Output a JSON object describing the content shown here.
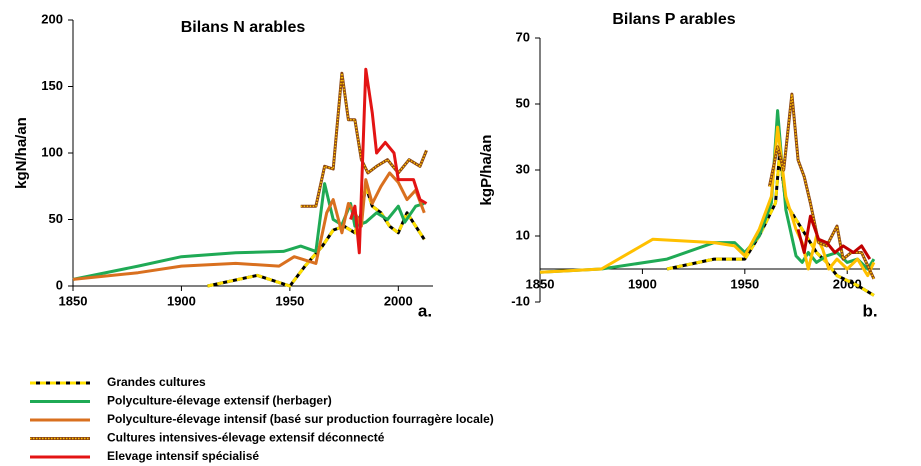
{
  "chart_data": [
    {
      "type": "line",
      "title": "Bilans N arables",
      "ylabel": "kgN/ha/an",
      "panel_label": "a.",
      "xlim": [
        1850,
        2016
      ],
      "xticks": [
        1850,
        1900,
        1950,
        2000
      ],
      "ylim": [
        0,
        200
      ],
      "yticks": [
        0,
        50,
        100,
        150,
        200
      ],
      "series": [
        {
          "name": "Grandes cultures",
          "color": "#ffe000",
          "style": "dashed",
          "x": [
            1912,
            1935,
            1950,
            1957,
            1965,
            1970,
            1975,
            1980,
            1983,
            1985,
            1988,
            1992,
            1996,
            2000,
            2004,
            2008,
            2012
          ],
          "values": [
            0,
            8,
            0,
            15,
            30,
            42,
            45,
            40,
            55,
            75,
            60,
            55,
            45,
            40,
            55,
            45,
            35
          ]
        },
        {
          "name": "Polyculture-élevage extensif (herbager)",
          "color": "#1faa55",
          "style": "solid",
          "x": [
            1850,
            1880,
            1900,
            1925,
            1947,
            1955,
            1962,
            1966,
            1970,
            1974,
            1978,
            1980,
            1985,
            1990,
            1995,
            2000,
            2003,
            2008,
            2012
          ],
          "values": [
            5,
            15,
            22,
            25,
            26,
            30,
            26,
            77,
            50,
            46,
            62,
            45,
            48,
            55,
            50,
            60,
            48,
            60,
            62
          ]
        },
        {
          "name": "Polyculture-élevage intensif (basé sur production fourragère locale)",
          "color": "#d9701f",
          "style": "solid",
          "x": [
            1850,
            1880,
            1900,
            1925,
            1945,
            1952,
            1962,
            1967,
            1970,
            1974,
            1977,
            1980,
            1983,
            1985,
            1988,
            1992,
            1996,
            2000,
            2004,
            2008,
            2012
          ],
          "values": [
            5,
            10,
            15,
            17,
            15,
            22,
            17,
            55,
            65,
            40,
            62,
            55,
            45,
            80,
            62,
            75,
            85,
            78,
            65,
            72,
            55
          ]
        },
        {
          "name": "Cultures intensives-élevage extensif déconnecté",
          "color": "#b8860b",
          "style": "dotted",
          "x": [
            1955,
            1962,
            1966,
            1970,
            1974,
            1977,
            1980,
            1983,
            1986,
            1990,
            1995,
            2000,
            2005,
            2010,
            2013
          ],
          "values": [
            60,
            60,
            90,
            88,
            160,
            125,
            125,
            95,
            85,
            90,
            95,
            85,
            95,
            90,
            102
          ]
        },
        {
          "name": "Elevage intensif spécialisé",
          "color": "#e31414",
          "style": "solid",
          "x": [
            1978,
            1980,
            1982,
            1985,
            1988,
            1990,
            1994,
            1998,
            2000,
            2004,
            2007,
            2010,
            2013
          ],
          "values": [
            50,
            60,
            25,
            163,
            130,
            100,
            108,
            100,
            80,
            80,
            80,
            65,
            62
          ]
        }
      ]
    },
    {
      "type": "line",
      "title": "Bilans P arables",
      "ylabel": "kgP/ha/an",
      "panel_label": "b.",
      "xlim": [
        1850,
        2016
      ],
      "xticks": [
        1850,
        1900,
        1950,
        2000
      ],
      "ylim": [
        -10,
        70
      ],
      "yticks": [
        -10,
        10,
        30,
        50,
        70
      ],
      "series": [
        {
          "color": "#ffe000",
          "style": "dashed",
          "x": [
            1912,
            1935,
            1950,
            1957,
            1965,
            1967,
            1970,
            1975,
            1980,
            1985,
            1990,
            1995,
            2005,
            2013
          ],
          "values": [
            0,
            3,
            3,
            10,
            20,
            35,
            20,
            15,
            10,
            5,
            2,
            -2,
            -5,
            -8
          ]
        },
        {
          "color": "#1faa55",
          "style": "solid",
          "x": [
            1850,
            1880,
            1912,
            1935,
            1945,
            1950,
            1957,
            1963,
            1966,
            1970,
            1975,
            1978,
            1981,
            1985,
            1990,
            1995,
            2000,
            2005,
            2010,
            2013
          ],
          "values": [
            -1,
            0,
            3,
            8,
            8,
            5,
            10,
            20,
            48,
            18,
            4,
            2,
            5,
            2,
            4,
            5,
            2,
            3,
            0,
            3
          ]
        },
        {
          "color": "#ffc000",
          "style": "solid",
          "x": [
            1850,
            1880,
            1905,
            1935,
            1945,
            1950,
            1957,
            1963,
            1966,
            1970,
            1975,
            1978,
            1981,
            1985,
            1988,
            1991,
            1995,
            2000,
            2005,
            2010,
            2013
          ],
          "values": [
            -1,
            0,
            9,
            8,
            7,
            4,
            12,
            22,
            43,
            22,
            12,
            8,
            0,
            10,
            6,
            0,
            3,
            0,
            3,
            -2,
            2
          ]
        },
        {
          "color": "#b8860b",
          "style": "dotted",
          "x": [
            1962,
            1966,
            1969,
            1973,
            1976,
            1979,
            1982,
            1986,
            1990,
            1995,
            1998,
            2002,
            2007,
            2013
          ],
          "values": [
            25,
            37,
            30,
            53,
            33,
            28,
            20,
            8,
            7,
            13,
            3,
            5,
            5,
            -3
          ]
        },
        {
          "color": "#c00000",
          "style": "solid",
          "x": [
            1976,
            1979,
            1982,
            1986,
            1990,
            1994,
            1998,
            2003,
            2007,
            2011
          ],
          "values": [
            12,
            5,
            16,
            9,
            8,
            5,
            7,
            5,
            7,
            3
          ]
        }
      ]
    }
  ]
}
